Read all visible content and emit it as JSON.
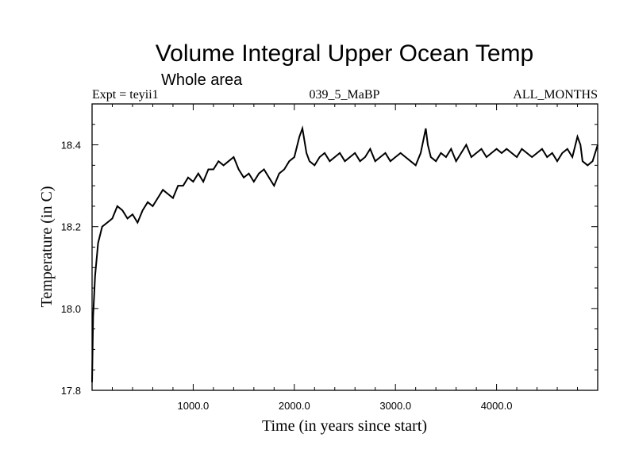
{
  "chart_data": {
    "type": "line",
    "title": "Volume Integral Upper Ocean Temp",
    "subtitle": "Whole area",
    "annotations": {
      "left": "Expt = teyii1",
      "center": "039_5_MaBP",
      "right": "ALL_MONTHS"
    },
    "xlabel": "Time (in years since start)",
    "ylabel": "Temperature (in C)",
    "xlim": [
      0,
      5000
    ],
    "ylim": [
      17.8,
      18.5
    ],
    "x_ticks": [
      {
        "value": 1000,
        "label": "1000.0"
      },
      {
        "value": 2000,
        "label": "2000.0"
      },
      {
        "value": 3000,
        "label": "3000.0"
      },
      {
        "value": 4000,
        "label": "4000.0"
      }
    ],
    "y_ticks": [
      {
        "value": 17.8,
        "label": "17.8"
      },
      {
        "value": 18.0,
        "label": "18.0"
      },
      {
        "value": 18.2,
        "label": "18.2"
      },
      {
        "value": 18.4,
        "label": "18.4"
      }
    ],
    "grid": false,
    "series": [
      {
        "name": "Volume integral upper ocean temperature",
        "color": "#000000",
        "x": [
          0,
          10,
          30,
          60,
          100,
          150,
          200,
          250,
          300,
          350,
          400,
          450,
          500,
          550,
          600,
          650,
          700,
          750,
          800,
          850,
          900,
          950,
          1000,
          1050,
          1100,
          1150,
          1200,
          1250,
          1300,
          1350,
          1400,
          1450,
          1500,
          1550,
          1600,
          1650,
          1700,
          1750,
          1800,
          1850,
          1900,
          1950,
          2000,
          2050,
          2080,
          2120,
          2150,
          2200,
          2250,
          2300,
          2350,
          2400,
          2450,
          2500,
          2550,
          2600,
          2650,
          2700,
          2750,
          2800,
          2850,
          2900,
          2950,
          3000,
          3050,
          3100,
          3150,
          3200,
          3250,
          3300,
          3320,
          3350,
          3400,
          3450,
          3500,
          3550,
          3600,
          3650,
          3700,
          3750,
          3800,
          3850,
          3900,
          3950,
          4000,
          4050,
          4100,
          4150,
          4200,
          4250,
          4300,
          4350,
          4400,
          4450,
          4500,
          4550,
          4600,
          4650,
          4700,
          4750,
          4800,
          4830,
          4850,
          4900,
          4950,
          5000
        ],
        "values": [
          17.82,
          17.98,
          18.08,
          18.16,
          18.2,
          18.21,
          18.22,
          18.25,
          18.24,
          18.22,
          18.23,
          18.21,
          18.24,
          18.26,
          18.25,
          18.27,
          18.29,
          18.28,
          18.27,
          18.3,
          18.3,
          18.32,
          18.31,
          18.33,
          18.31,
          18.34,
          18.34,
          18.36,
          18.35,
          18.36,
          18.37,
          18.34,
          18.32,
          18.33,
          18.31,
          18.33,
          18.34,
          18.32,
          18.3,
          18.33,
          18.34,
          18.36,
          18.37,
          18.42,
          18.44,
          18.38,
          18.36,
          18.35,
          18.37,
          18.38,
          18.36,
          18.37,
          18.38,
          18.36,
          18.37,
          18.38,
          18.36,
          18.37,
          18.39,
          18.36,
          18.37,
          18.38,
          18.36,
          18.37,
          18.38,
          18.37,
          18.36,
          18.35,
          18.38,
          18.44,
          18.4,
          18.37,
          18.36,
          18.38,
          18.37,
          18.39,
          18.36,
          18.38,
          18.4,
          18.37,
          18.38,
          18.39,
          18.37,
          18.38,
          18.39,
          18.38,
          18.39,
          18.38,
          18.37,
          18.39,
          18.38,
          18.37,
          18.38,
          18.39,
          18.37,
          18.38,
          18.36,
          18.38,
          18.39,
          18.37,
          18.42,
          18.4,
          18.36,
          18.35,
          18.36,
          18.4
        ]
      }
    ]
  }
}
